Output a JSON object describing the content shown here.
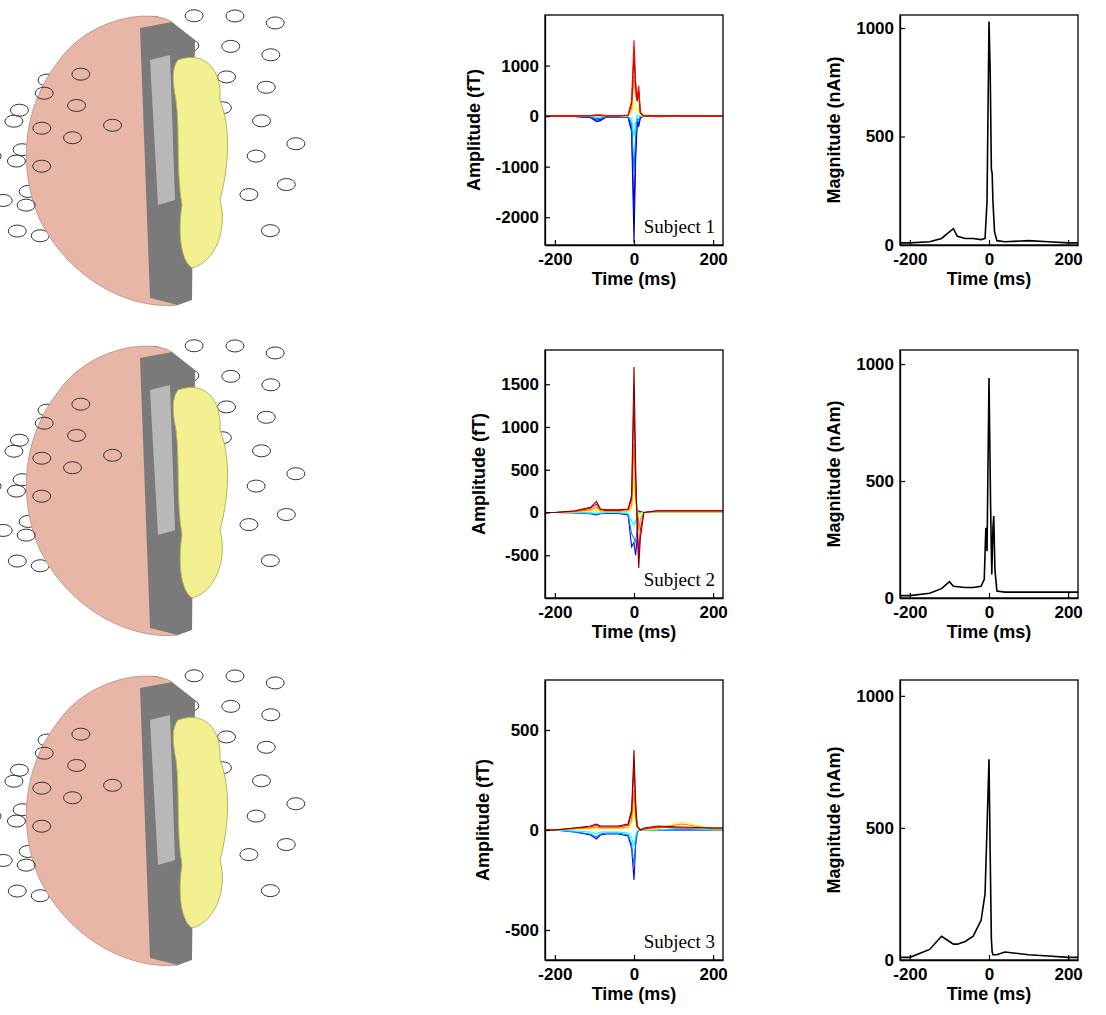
{
  "chart_data": [
    {
      "type": "line",
      "x_label": "Time (ms)",
      "y_label": "Amplitude (fT)",
      "annotation": "Subject 1",
      "xlim": [
        -225,
        225
      ],
      "xticks": [
        -200,
        0,
        200
      ],
      "ylim": [
        -2550,
        2000
      ],
      "yticks": [
        -2000,
        -1000,
        0,
        1000
      ],
      "x": [
        -225,
        -200,
        -150,
        -110,
        -95,
        -85,
        -70,
        -40,
        -15,
        -6,
        0,
        4,
        8,
        12,
        16,
        25,
        60,
        120,
        200,
        225
      ],
      "series": [
        {
          "color": "#00008f",
          "values": [
            0,
            0,
            -5,
            -30,
            -110,
            -90,
            -20,
            -10,
            -20,
            -300,
            -2500,
            -900,
            -150,
            -200,
            -40,
            0,
            -10,
            0,
            0,
            0
          ]
        },
        {
          "color": "#0000ff",
          "values": [
            0,
            0,
            -5,
            -25,
            -80,
            -70,
            -15,
            -10,
            -15,
            -250,
            -1900,
            -700,
            -100,
            -150,
            -20,
            0,
            -5,
            0,
            0,
            0
          ]
        },
        {
          "color": "#0080ff",
          "values": [
            0,
            0,
            -5,
            -15,
            -50,
            -40,
            -10,
            -5,
            -10,
            -150,
            -1100,
            -400,
            -50,
            -80,
            -10,
            0,
            0,
            0,
            0,
            0
          ]
        },
        {
          "color": "#00ffff",
          "values": [
            0,
            0,
            0,
            -5,
            -20,
            -15,
            -5,
            0,
            -5,
            -60,
            -400,
            -150,
            20,
            0,
            0,
            0,
            0,
            0,
            0,
            0
          ]
        },
        {
          "color": "#ffff00",
          "values": [
            0,
            0,
            0,
            5,
            10,
            10,
            5,
            0,
            5,
            60,
            300,
            150,
            100,
            150,
            20,
            0,
            5,
            0,
            0,
            0
          ]
        },
        {
          "color": "#ff8000",
          "values": [
            0,
            0,
            0,
            5,
            15,
            15,
            5,
            5,
            10,
            150,
            800,
            400,
            300,
            400,
            50,
            0,
            5,
            0,
            0,
            0
          ]
        },
        {
          "color": "#800000",
          "values": [
            0,
            0,
            5,
            10,
            15,
            15,
            5,
            5,
            15,
            250,
            1200,
            600,
            300,
            500,
            60,
            0,
            10,
            5,
            0,
            0
          ]
        },
        {
          "color": "#ff0000",
          "values": [
            0,
            0,
            5,
            10,
            20,
            20,
            10,
            5,
            20,
            300,
            1500,
            700,
            350,
            600,
            80,
            0,
            10,
            5,
            0,
            0
          ]
        }
      ]
    },
    {
      "type": "line",
      "x_label": "Time (ms)",
      "y_label": "Magnitude (nAm)",
      "xlim": [
        -225,
        225
      ],
      "xticks": [
        -200,
        0,
        200
      ],
      "ylim": [
        0,
        1060
      ],
      "yticks": [
        0,
        500,
        1000
      ],
      "x": [
        -225,
        -200,
        -150,
        -120,
        -100,
        -90,
        -80,
        -60,
        -40,
        -20,
        -10,
        -5,
        0,
        3,
        6,
        8,
        10,
        14,
        20,
        40,
        100,
        150,
        200,
        225
      ],
      "series": [
        {
          "color": "#000000",
          "values": [
            10,
            10,
            15,
            30,
            60,
            75,
            40,
            30,
            30,
            25,
            30,
            200,
            1030,
            800,
            350,
            330,
            200,
            60,
            20,
            15,
            20,
            15,
            10,
            10
          ]
        }
      ]
    },
    {
      "type": "line",
      "x_label": "Time (ms)",
      "y_label": "Amplitude (fT)",
      "annotation": "Subject 2",
      "xlim": [
        -225,
        225
      ],
      "xticks": [
        -200,
        0,
        200
      ],
      "ylim": [
        -1000,
        1900
      ],
      "yticks": [
        -500,
        0,
        500,
        1000,
        1500
      ],
      "x": [
        -225,
        -200,
        -150,
        -110,
        -95,
        -85,
        -70,
        -40,
        -15,
        -6,
        0,
        4,
        8,
        12,
        16,
        25,
        60,
        120,
        200,
        225
      ],
      "series": [
        {
          "color": "#0000ff",
          "values": [
            0,
            0,
            -5,
            -15,
            -30,
            -15,
            -10,
            -10,
            -30,
            -400,
            -350,
            -500,
            -300,
            20,
            10,
            0,
            0,
            0,
            0,
            0
          ]
        },
        {
          "color": "#0080ff",
          "values": [
            0,
            0,
            0,
            -10,
            -20,
            -10,
            -5,
            -5,
            -20,
            -250,
            -300,
            -350,
            -200,
            0,
            0,
            0,
            0,
            0,
            0,
            0
          ]
        },
        {
          "color": "#00ffff",
          "values": [
            0,
            0,
            0,
            -5,
            -10,
            -5,
            0,
            0,
            -10,
            -100,
            -150,
            -100,
            -50,
            0,
            0,
            0,
            0,
            0,
            0,
            0
          ]
        },
        {
          "color": "#ffff00",
          "values": [
            0,
            0,
            5,
            15,
            30,
            10,
            10,
            10,
            10,
            40,
            400,
            100,
            50,
            -50,
            -20,
            0,
            5,
            5,
            5,
            5
          ]
        },
        {
          "color": "#ff8000",
          "values": [
            0,
            0,
            10,
            30,
            60,
            20,
            15,
            15,
            20,
            80,
            800,
            200,
            0,
            -200,
            -80,
            0,
            10,
            10,
            10,
            10
          ]
        },
        {
          "color": "#ff0000",
          "values": [
            0,
            0,
            15,
            50,
            100,
            35,
            25,
            25,
            35,
            150,
            1300,
            400,
            -100,
            -500,
            -200,
            0,
            20,
            20,
            20,
            20
          ]
        },
        {
          "color": "#800000",
          "values": [
            0,
            0,
            20,
            60,
            130,
            40,
            30,
            30,
            40,
            200,
            1700,
            600,
            -200,
            -650,
            -300,
            0,
            20,
            20,
            20,
            20
          ]
        }
      ]
    },
    {
      "type": "line",
      "x_label": "Time (ms)",
      "y_label": "Magnitude (nAm)",
      "xlim": [
        -225,
        225
      ],
      "xticks": [
        -200,
        0,
        200
      ],
      "ylim": [
        0,
        1060
      ],
      "yticks": [
        0,
        500,
        1000
      ],
      "x": [
        -225,
        -200,
        -150,
        -120,
        -100,
        -95,
        -90,
        -60,
        -40,
        -20,
        -12,
        -8,
        -5,
        0,
        4,
        7,
        10,
        12,
        15,
        20,
        40,
        100,
        150,
        200,
        225
      ],
      "series": [
        {
          "color": "#000000",
          "values": [
            10,
            10,
            20,
            40,
            70,
            60,
            50,
            45,
            45,
            50,
            80,
            300,
            200,
            940,
            400,
            100,
            300,
            350,
            120,
            30,
            25,
            25,
            25,
            25,
            25
          ]
        }
      ]
    },
    {
      "type": "line",
      "x_label": "Time (ms)",
      "y_label": "Amplitude (fT)",
      "annotation": "Subject 3",
      "xlim": [
        -225,
        225
      ],
      "xticks": [
        -200,
        0,
        200
      ],
      "ylim": [
        -650,
        750
      ],
      "yticks": [
        -500,
        0,
        500
      ],
      "x": [
        -225,
        -200,
        -150,
        -110,
        -95,
        -85,
        -70,
        -40,
        -15,
        -6,
        0,
        4,
        8,
        12,
        16,
        25,
        60,
        120,
        200,
        225
      ],
      "series": [
        {
          "color": "#0000ff",
          "values": [
            0,
            0,
            -10,
            -25,
            -45,
            -25,
            -20,
            -20,
            -30,
            -90,
            -250,
            -80,
            -15,
            0,
            0,
            0,
            0,
            0,
            0,
            0
          ]
        },
        {
          "color": "#0080ff",
          "values": [
            0,
            0,
            -10,
            -20,
            -35,
            -20,
            -15,
            -15,
            -25,
            -70,
            -180,
            -60,
            -10,
            0,
            0,
            0,
            0,
            0,
            0,
            0
          ]
        },
        {
          "color": "#00ffff",
          "values": [
            0,
            0,
            -5,
            -10,
            -20,
            -10,
            -10,
            -10,
            -15,
            -40,
            -80,
            -30,
            -5,
            0,
            0,
            0,
            0,
            10,
            0,
            0
          ]
        },
        {
          "color": "#ffff00",
          "values": [
            0,
            0,
            5,
            5,
            10,
            5,
            5,
            5,
            10,
            30,
            120,
            40,
            10,
            5,
            0,
            0,
            5,
            40,
            5,
            5
          ]
        },
        {
          "color": "#ff8000",
          "values": [
            0,
            0,
            5,
            10,
            15,
            10,
            10,
            10,
            15,
            50,
            200,
            60,
            10,
            5,
            0,
            5,
            10,
            30,
            5,
            5
          ]
        },
        {
          "color": "#ff0000",
          "values": [
            0,
            0,
            10,
            15,
            25,
            15,
            15,
            15,
            25,
            80,
            320,
            100,
            20,
            10,
            0,
            5,
            15,
            10,
            10,
            10
          ]
        },
        {
          "color": "#800000",
          "values": [
            0,
            0,
            10,
            20,
            30,
            20,
            20,
            20,
            30,
            100,
            400,
            150,
            20,
            10,
            0,
            10,
            20,
            15,
            10,
            10
          ]
        }
      ]
    },
    {
      "type": "line",
      "x_label": "Time (ms)",
      "y_label": "Magnitude (nAm)",
      "xlim": [
        -225,
        225
      ],
      "xticks": [
        -200,
        0,
        200
      ],
      "ylim": [
        0,
        1060
      ],
      "yticks": [
        0,
        500,
        1000
      ],
      "x": [
        -225,
        -200,
        -150,
        -120,
        -100,
        -90,
        -80,
        -60,
        -40,
        -20,
        -10,
        -5,
        0,
        3,
        6,
        8,
        10,
        14,
        20,
        40,
        100,
        150,
        200,
        225
      ],
      "series": [
        {
          "color": "#000000",
          "values": [
            10,
            10,
            40,
            90,
            70,
            60,
            60,
            70,
            90,
            150,
            250,
            500,
            760,
            400,
            80,
            30,
            20,
            20,
            20,
            30,
            20,
            15,
            10,
            10
          ]
        }
      ]
    }
  ]
}
